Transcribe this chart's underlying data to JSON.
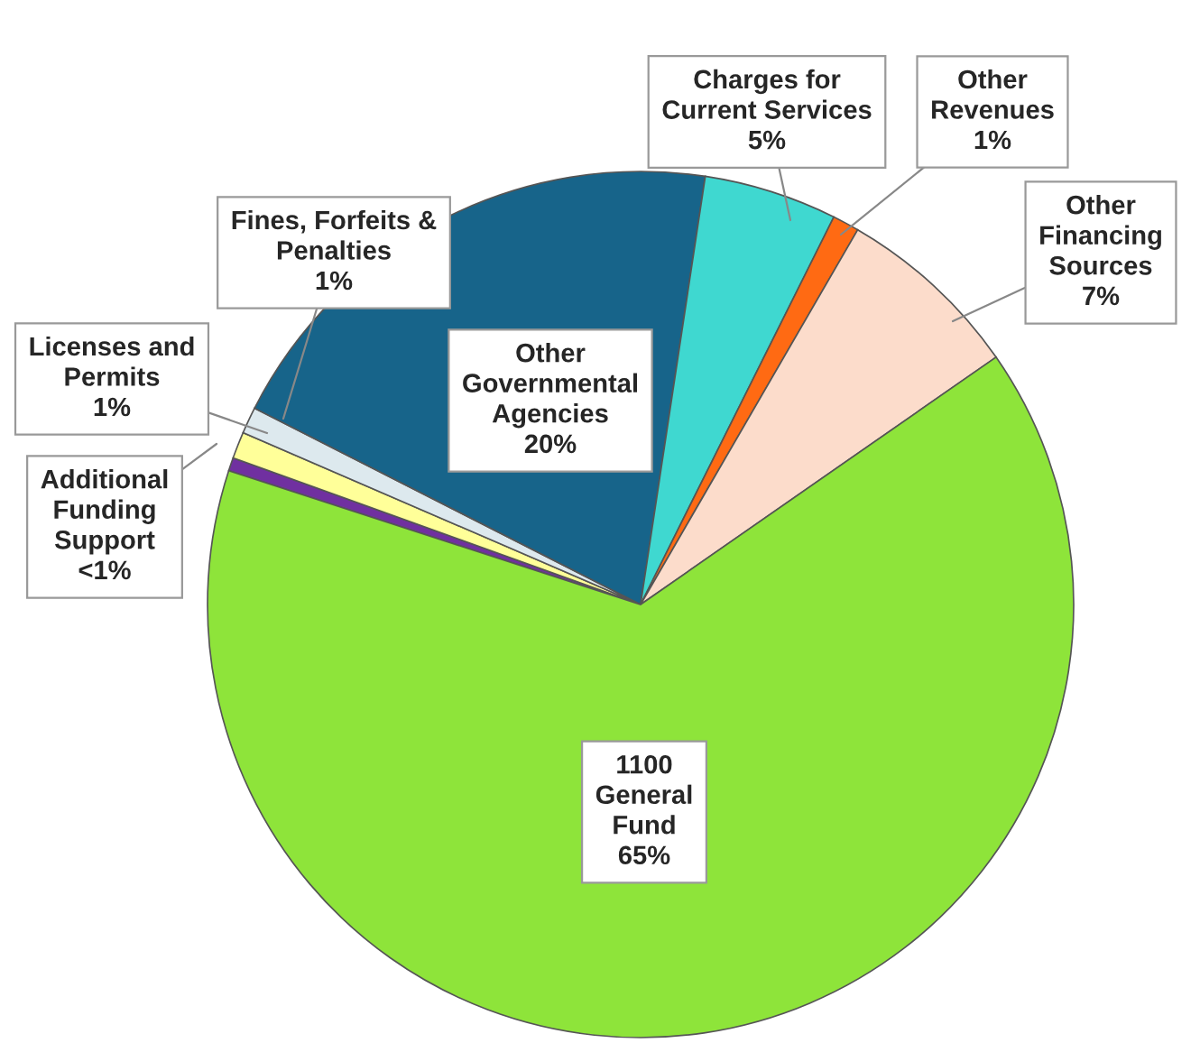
{
  "chart_data": {
    "type": "pie",
    "categories": [
      "Additional\nFunding\nSupport",
      "Licenses and\nPermits",
      "Fines, Forfeits &\nPenalties",
      "Other\nGovernmental\nAgencies",
      "Charges for\nCurrent Services",
      "Other\nRevenues",
      "Other\nFinancing\nSources",
      "1100\nGeneral\nFund"
    ],
    "values": [
      0.5,
      1,
      1,
      20,
      5,
      1,
      7,
      65
    ],
    "value_labels": [
      "<1%",
      "1%",
      "1%",
      "20%",
      "5%",
      "1%",
      "7%",
      "65%"
    ],
    "colors": [
      "#7030a0",
      "#ffff99",
      "#dde9ee",
      "#17648a",
      "#3fd8d0",
      "#ff6a13",
      "#fcdccb",
      "#8ee43a"
    ]
  }
}
